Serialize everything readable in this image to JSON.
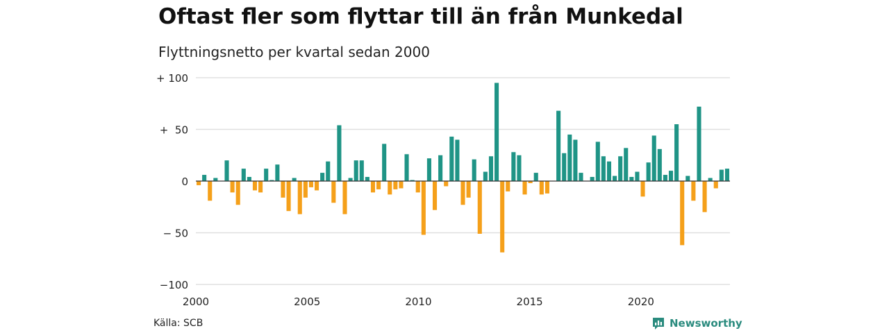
{
  "title": "Oftast fler som flyttar till än från Munkedal",
  "subtitle": "Flyttningsnetto per kvartal sedan 2000",
  "source": "Källa: SCB",
  "brand": {
    "name": "Newsworthy",
    "icon": "newsworthy-logo-icon"
  },
  "colors": {
    "positive": "#1f9486",
    "negative": "#f5a01a",
    "grid": "#e0e0e0",
    "zero_line": "#333333"
  },
  "chart_data": {
    "type": "bar",
    "x_start_year": 2000,
    "xticks": [
      "2000",
      "2005",
      "2010",
      "2015",
      "2020"
    ],
    "yticks": [
      "+ 100",
      "+  50",
      "0",
      "− 50",
      "−100"
    ],
    "ylim": [
      -100,
      100
    ],
    "grid": true,
    "values": [
      -4,
      6,
      -19,
      3,
      0,
      20,
      -11,
      -23,
      12,
      4,
      -9,
      -11,
      12,
      1,
      16,
      -16,
      -29,
      3,
      -32,
      -16,
      -6,
      -9,
      8,
      19,
      -21,
      54,
      -32,
      3,
      20,
      20,
      4,
      -11,
      -8,
      36,
      -13,
      -8,
      -7,
      26,
      1,
      -11,
      -52,
      22,
      -28,
      25,
      -5,
      43,
      40,
      -23,
      -16,
      21,
      -51,
      9,
      24,
      95,
      -69,
      -10,
      28,
      25,
      -13,
      -2,
      8,
      -13,
      -12,
      0,
      68,
      27,
      45,
      40,
      8,
      0,
      4,
      38,
      24,
      19,
      5,
      24,
      32,
      4,
      9,
      -15,
      18,
      44,
      31,
      6,
      10,
      55,
      -62,
      5,
      -19,
      72,
      -30,
      3,
      -7,
      11,
      12
    ]
  }
}
